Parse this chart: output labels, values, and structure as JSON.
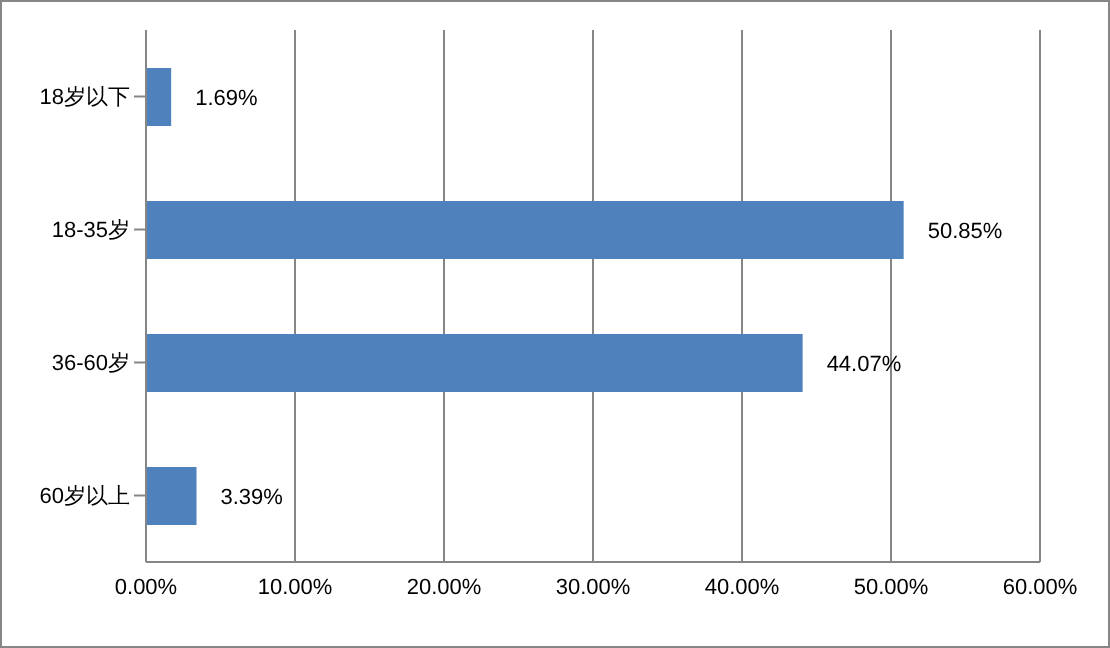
{
  "chart_data": {
    "type": "bar",
    "orientation": "horizontal",
    "categories": [
      "18岁以下",
      "18-35岁",
      "36-60岁",
      "60岁以上"
    ],
    "values": [
      1.69,
      50.85,
      44.07,
      3.39
    ],
    "value_labels": [
      "1.69%",
      "50.85%",
      "44.07%",
      "3.39%"
    ],
    "color": "#4f81bd",
    "xlim": [
      0,
      60
    ],
    "xticks": [
      {
        "value": 0,
        "label": "0.00%"
      },
      {
        "value": 10,
        "label": "10.00%"
      },
      {
        "value": 20,
        "label": "20.00%"
      },
      {
        "value": 30,
        "label": "30.00%"
      },
      {
        "value": 40,
        "label": "40.00%"
      },
      {
        "value": 50,
        "label": "50.00%"
      },
      {
        "value": 60,
        "label": "60.00%"
      }
    ],
    "grid": "x"
  }
}
